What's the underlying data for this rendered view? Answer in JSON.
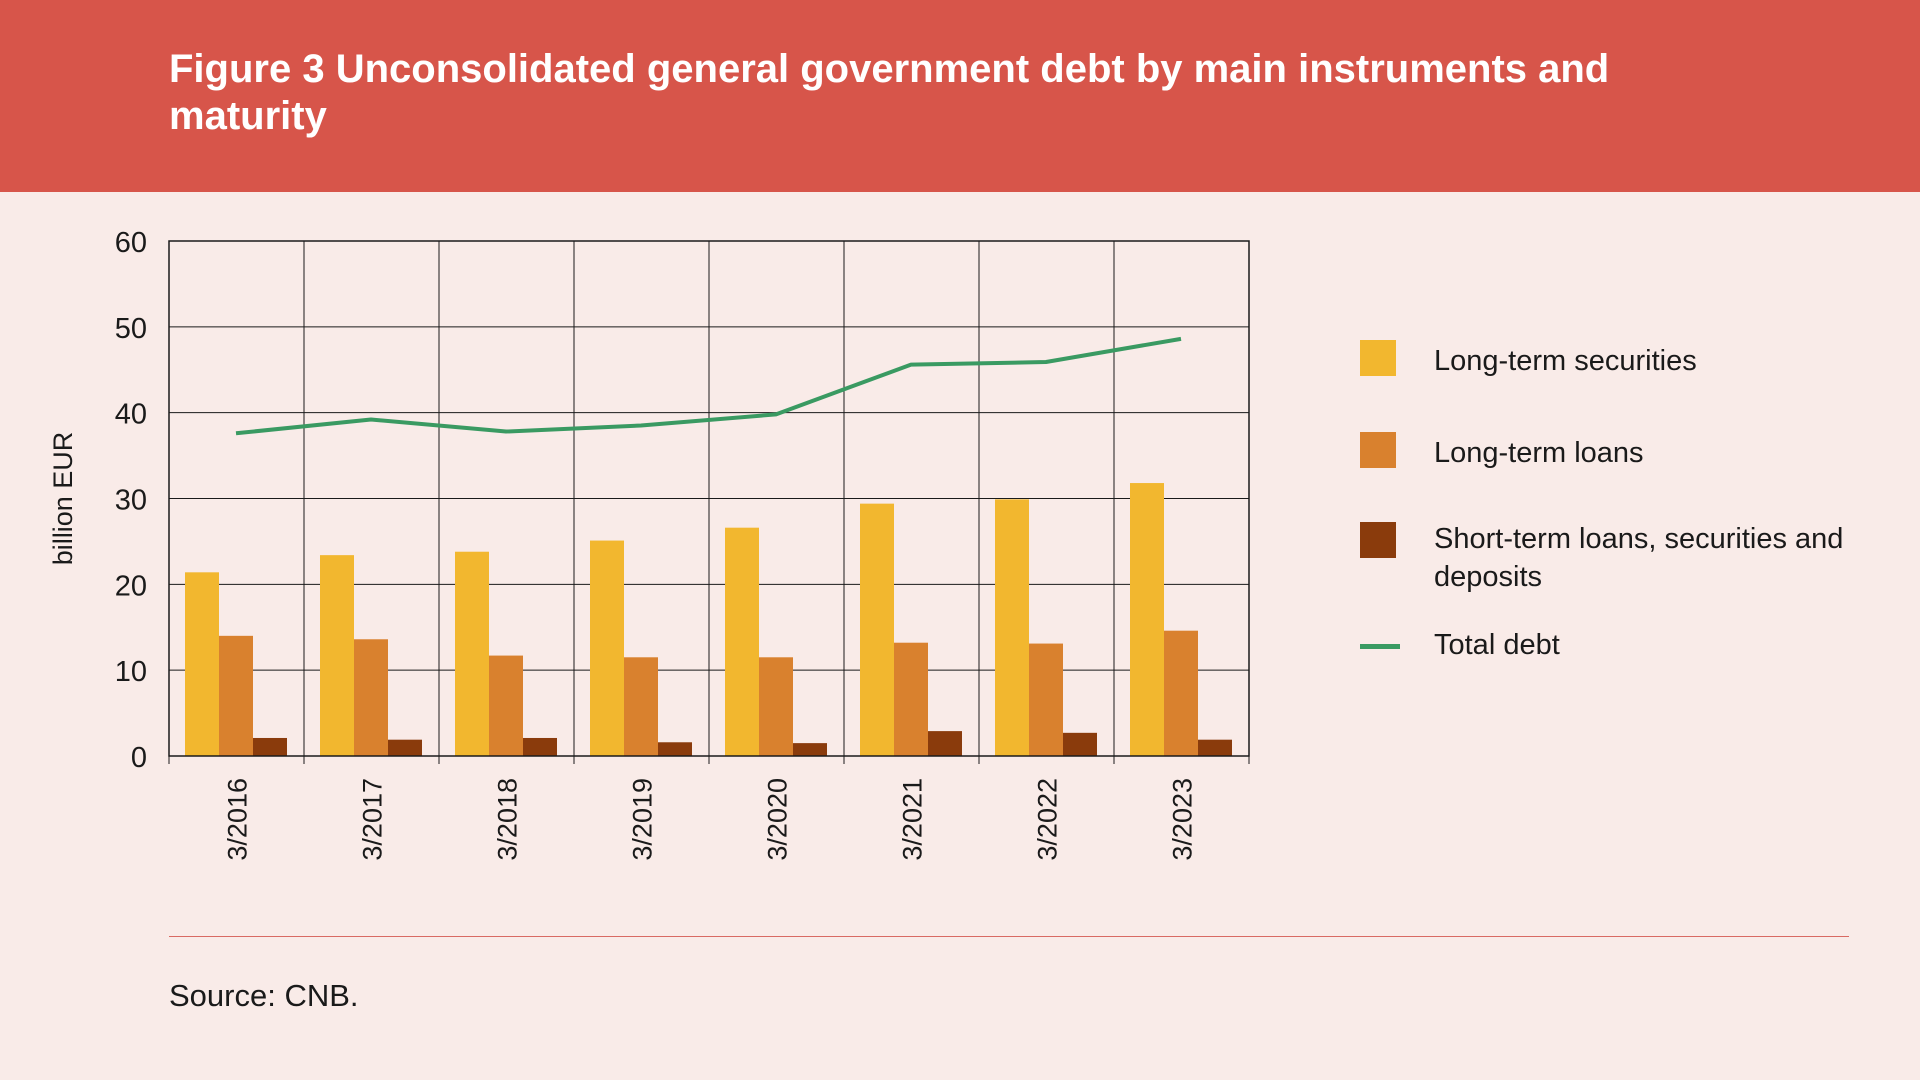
{
  "title": "Figure 3 Unconsolidated general government debt by main instruments and maturity",
  "source": "Source: CNB.",
  "legend": [
    {
      "label": "Long-term securities",
      "color": "#f2b72f",
      "kind": "box"
    },
    {
      "label": "Long-term loans",
      "color": "#d9812e",
      "kind": "box"
    },
    {
      "label": "Short-term loans, securities and deposits",
      "color": "#8a3b0c",
      "kind": "box"
    },
    {
      "label": "Total debt",
      "color": "#3a9a62",
      "kind": "line"
    }
  ],
  "chart_data": {
    "type": "bar",
    "title": "Figure 3 Unconsolidated general government debt by main instruments and maturity",
    "ylabel": "billion EUR",
    "xlabel": "",
    "ylim": [
      0,
      60
    ],
    "yticks": [
      "0",
      "10",
      "20",
      "30",
      "40",
      "50",
      "60"
    ],
    "grid": true,
    "legend_position": "right",
    "categories": [
      "3/2016",
      "3/2017",
      "3/2018",
      "3/2019",
      "3/2020",
      "3/2021",
      "3/2022",
      "3/2023"
    ],
    "series": [
      {
        "name": "Long-term securities",
        "type": "bar",
        "color": "#f2b72f",
        "values": [
          21.4,
          23.4,
          23.8,
          25.1,
          26.6,
          29.4,
          29.9,
          31.8
        ]
      },
      {
        "name": "Long-term loans",
        "type": "bar",
        "color": "#d9812e",
        "values": [
          14.0,
          13.6,
          11.7,
          11.5,
          11.5,
          13.2,
          13.1,
          14.6
        ]
      },
      {
        "name": "Short-term loans, securities and deposits",
        "type": "bar",
        "color": "#8a3b0c",
        "values": [
          2.1,
          1.9,
          2.1,
          1.6,
          1.5,
          2.9,
          2.7,
          1.9
        ]
      },
      {
        "name": "Total debt",
        "type": "line",
        "color": "#3a9a62",
        "values": [
          37.6,
          39.2,
          37.8,
          38.5,
          39.8,
          45.6,
          45.9,
          48.6
        ]
      }
    ]
  }
}
